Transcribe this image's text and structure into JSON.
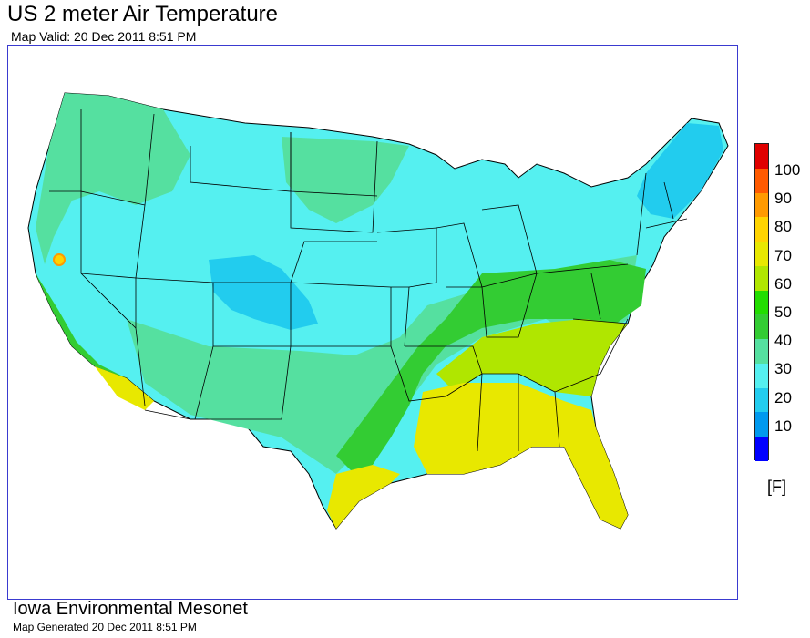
{
  "header": {
    "title": "US 2 meter Air Temperature",
    "subtitle": "Map Valid: 20 Dec 2011 8:51 PM"
  },
  "legend": {
    "units": "[F]",
    "labels": [
      "100",
      "90",
      "80",
      "70",
      "60",
      "50",
      "40",
      "30",
      "20",
      "10"
    ],
    "colors": [
      "#e00000",
      "#ff5a00",
      "#ff9a00",
      "#ffd400",
      "#e8e800",
      "#b0e600",
      "#22dd00",
      "#33cc33",
      "#55e0a0",
      "#55f0f0",
      "#22ccee",
      "#0099ee",
      "#0000ff"
    ]
  },
  "map": {
    "color_scheme": {
      "water": "#ffffff",
      "border": "#000000",
      "frame": "#3a3ad0"
    }
  },
  "footer": {
    "org": "Iowa Environmental Mesonet",
    "generated": "Map Generated 20 Dec 2011 8:51 PM"
  }
}
